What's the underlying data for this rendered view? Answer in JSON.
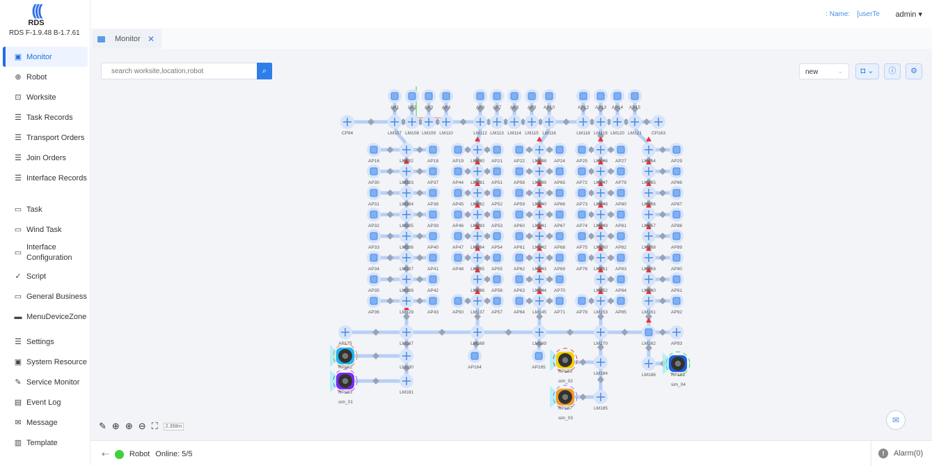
{
  "app": {
    "logo_text": "RDS",
    "version": "RDS F-1.9.48 B-1.7.61"
  },
  "header": {
    "name_label": ": Name:",
    "name_value": "[userTe",
    "user": "admin"
  },
  "tab": {
    "label": "Monitor"
  },
  "sidebar": {
    "groups": [
      [
        {
          "label": "Monitor",
          "icon": "monitor-icon",
          "active": true
        },
        {
          "label": "Robot",
          "icon": "robot-icon"
        },
        {
          "label": "Worksite",
          "icon": "worksite-icon"
        },
        {
          "label": "Task Records",
          "icon": "list-icon"
        },
        {
          "label": "Transport Orders",
          "icon": "list-icon"
        },
        {
          "label": "Join Orders",
          "icon": "list-icon"
        },
        {
          "label": "Interface Records",
          "icon": "list-icon"
        }
      ],
      [
        {
          "label": "Task",
          "icon": "task-icon"
        },
        {
          "label": "Wind Task",
          "icon": "task-icon"
        },
        {
          "label": "Interface Configuration",
          "icon": "task-icon"
        },
        {
          "label": "Script",
          "icon": "script-icon"
        },
        {
          "label": "General Business",
          "icon": "task-icon"
        },
        {
          "label": "MenuDeviceZone",
          "icon": "device-zone-icon"
        }
      ],
      [
        {
          "label": "Settings",
          "icon": "settings-icon"
        },
        {
          "label": "System Resource",
          "icon": "system-resource-icon"
        },
        {
          "label": "Service Monitor",
          "icon": "wrench-icon"
        },
        {
          "label": "Event Log",
          "icon": "event-log-icon"
        },
        {
          "label": "Message",
          "icon": "mail-icon"
        },
        {
          "label": "Template",
          "icon": "template-icon"
        }
      ]
    ]
  },
  "toolbar": {
    "search_placeholder": "search worksite,location,robot",
    "scene_select": "new",
    "scale": "2.358m"
  },
  "map": {
    "top_line": [
      "CP94",
      "LM107",
      "LM108",
      "LM109",
      "LM110",
      "LM112",
      "LM113",
      "LM114",
      "LM115",
      "LM116",
      "LM118",
      "LM119",
      "LM120",
      "LM121",
      "CP163"
    ],
    "top_aps": [
      "AP1",
      "AP2",
      "AP3",
      "AP4",
      "AP6",
      "AP7",
      "AP8",
      "AP9",
      "AP10",
      "AP12",
      "AP13",
      "AP14",
      "AP15"
    ],
    "blocks": [
      [
        [
          "AP16",
          "LM122",
          "AP18"
        ],
        [
          "AP30",
          "LM123",
          "AP37"
        ],
        [
          "AP31",
          "LM124",
          "AP38"
        ],
        [
          "AP32",
          "LM125",
          "AP39"
        ],
        [
          "AP33",
          "LM126",
          "AP40"
        ],
        [
          "AP34",
          "LM127",
          "AP41"
        ],
        [
          "AP35",
          "LM128",
          "AP42"
        ],
        [
          "AP36",
          "LM129",
          "AP43"
        ]
      ],
      [
        [
          "AP19",
          "LM130",
          "AP21"
        ],
        [
          "AP44",
          "LM131",
          "AP51"
        ],
        [
          "AP45",
          "LM132",
          "AP52"
        ],
        [
          "AP46",
          "LM133",
          "AP53"
        ],
        [
          "AP47",
          "LM134",
          "AP54"
        ],
        [
          "AP48",
          "LM135",
          "AP55"
        ],
        [
          "",
          "LM136",
          "AP56"
        ],
        [
          "AP50",
          "LM137",
          "AP57"
        ]
      ],
      [
        [
          "AP22",
          "LM138",
          "AP24"
        ],
        [
          "AP58",
          "LM139",
          "AP65"
        ],
        [
          "AP59",
          "LM140",
          "AP66"
        ],
        [
          "AP60",
          "LM141",
          "AP67"
        ],
        [
          "AP61",
          "LM142",
          "AP68"
        ],
        [
          "AP62",
          "LM143",
          "AP69"
        ],
        [
          "AP63",
          "LM144",
          "AP70"
        ],
        [
          "AP64",
          "LM145",
          "AP71"
        ]
      ],
      [
        [
          "AP25",
          "LM146",
          "AP27"
        ],
        [
          "AP72",
          "LM147",
          "AP79"
        ],
        [
          "AP73",
          "LM148",
          "AP80"
        ],
        [
          "AP74",
          "LM149",
          "AP81"
        ],
        [
          "AP75",
          "LM150",
          "AP82"
        ],
        [
          "AP76",
          "LM151",
          "AP83"
        ],
        [
          "",
          "LM152",
          "AP84"
        ],
        [
          "AP78",
          "LM153",
          "AP85"
        ]
      ],
      [
        [
          "",
          "LM154",
          "AP29"
        ],
        [
          "",
          "LM155",
          "AP86"
        ],
        [
          "",
          "LM156",
          "AP87"
        ],
        [
          "",
          "LM157",
          "AP88"
        ],
        [
          "",
          "LM158",
          "AP89"
        ],
        [
          "",
          "LM159",
          "AP90"
        ],
        [
          "",
          "LM160",
          "AP91"
        ],
        [
          "",
          "LM161",
          "AP92"
        ]
      ]
    ],
    "bottom_line": [
      "AP175",
      "LM167",
      "LM168",
      "LM169",
      "LM170",
      "LM162",
      "AP93"
    ],
    "extra_points": [
      "LM180",
      "LM181",
      "AP164",
      "AP165",
      "LM184",
      "LM185",
      "LM186"
    ],
    "robots": [
      {
        "point": "RP182",
        "name": "",
        "color": "#1fb6f0"
      },
      {
        "point": "RP183",
        "name": "sim_01",
        "color": "#7b2cf0"
      },
      {
        "point": "RP189",
        "name": "sim_02",
        "color": "#f5d000"
      },
      {
        "point": "RP187",
        "name": "sim_03",
        "color": "#f59a20"
      },
      {
        "point": "RP188",
        "name": "sim_04",
        "color": "#1f5fe0"
      }
    ]
  },
  "status": {
    "label": "Robot",
    "online": "Online: 5/5",
    "alarm": "Alarm(0)"
  },
  "colors": {
    "accent": "#2d7ee8",
    "online": "#3fcf3f",
    "path": "#b8d0f5",
    "node": "#4a88e0",
    "blocked": "#f03030"
  }
}
